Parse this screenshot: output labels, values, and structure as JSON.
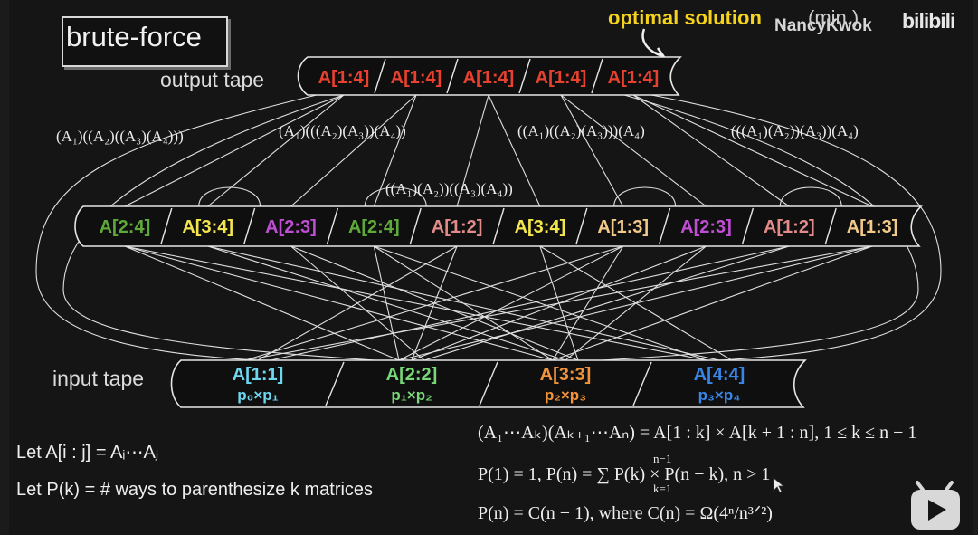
{
  "title": "brute-force",
  "watermark": "NancyKwok",
  "logo": "bilibili",
  "annotation": {
    "highlight": "optimal solution",
    "rest": "(min.)"
  },
  "output_tape": {
    "label": "output tape",
    "cells": [
      "A[1:4]",
      "A[1:4]",
      "A[1:4]",
      "A[1:4]",
      "A[1:4]"
    ]
  },
  "parenthesizations": [
    "(A₁)((A₂)((A₃)(A₄)))",
    "(A₁)(((A₂)(A₃))(A₄))",
    "((A₁)(A₂))((A₃)(A₄))",
    "((A₁)((A₂)(A₃)))(A₄)",
    "(((A₁)(A₂))(A₃))(A₄)"
  ],
  "middle_tape": {
    "cells": [
      {
        "text": "A[2:4]",
        "color": "#5fa83a"
      },
      {
        "text": "A[3:4]",
        "color": "#f3e64c"
      },
      {
        "text": "A[2:3]",
        "color": "#c04ed4"
      },
      {
        "text": "A[2:4]",
        "color": "#5fa83a"
      },
      {
        "text": "A[1:2]",
        "color": "#e38a8a"
      },
      {
        "text": "A[3:4]",
        "color": "#f3e64c"
      },
      {
        "text": "A[1:3]",
        "color": "#f3c98a"
      },
      {
        "text": "A[2:3]",
        "color": "#c04ed4"
      },
      {
        "text": "A[1:2]",
        "color": "#e38a8a"
      },
      {
        "text": "A[1:3]",
        "color": "#f3c98a"
      }
    ]
  },
  "input_tape": {
    "label": "input tape",
    "cells": [
      {
        "name": "A[1:1]",
        "dims": "p₀×p₁",
        "color": "#6fd6f0"
      },
      {
        "name": "A[2:2]",
        "dims": "p₁×p₂",
        "color": "#78d878"
      },
      {
        "name": "A[3:3]",
        "dims": "p₂×p₃",
        "color": "#f0933a"
      },
      {
        "name": "A[4:4]",
        "dims": "p₃×p₄",
        "color": "#3a86e8"
      }
    ]
  },
  "definitions": [
    "Let A[i : j] = Aᵢ⋯Aⱼ",
    "Let P(k) = # ways to parenthesize k matrices"
  ],
  "equations": [
    "(A₁⋯Aₖ)(Aₖ₊₁⋯Aₙ) = A[1 : k] × A[k + 1 : n],  1 ≤ k ≤ n − 1",
    "P(1) = 1, P(n) = ∑ P(k) × P(n − k),  n > 1",
    "P(n) = C(n − 1), where C(n) = Ω(4ⁿ/n³ᐟ²)"
  ],
  "sum_limits": {
    "upper": "n−1",
    "lower": "k=1"
  },
  "colors": {
    "output": "#e8412f",
    "highlight": "#f5d21c",
    "lines": "#e0e0e0",
    "background": "#151515"
  }
}
